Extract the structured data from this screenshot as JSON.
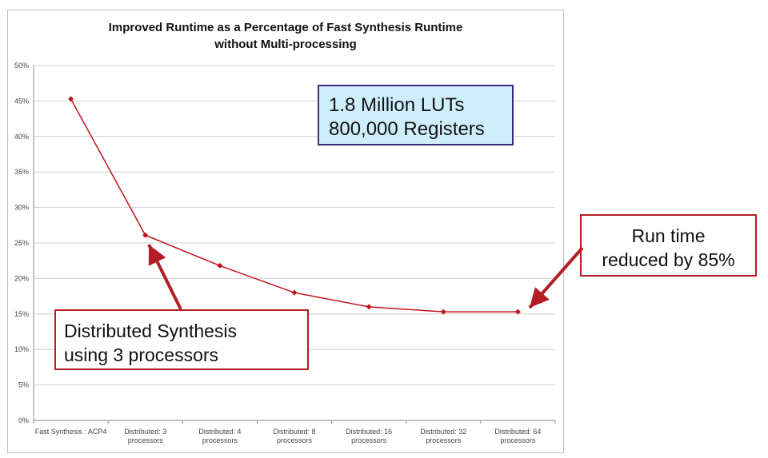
{
  "chart_data": {
    "type": "line",
    "title": [
      "Improved Runtime as a Percentage of Fast Synthesis Runtime",
      "without Multi-processing"
    ],
    "categories": [
      [
        "Fast Synthesis : ACP4"
      ],
      [
        "Distributed: 3",
        "processors"
      ],
      [
        "Distributed: 4",
        "processors"
      ],
      [
        "Distributed: 8",
        "processors"
      ],
      [
        "Distributed: 16",
        "processors"
      ],
      [
        "Distributed: 32",
        "processors"
      ],
      [
        "Distributed: 64",
        "processors"
      ]
    ],
    "values": [
      45.3,
      26.1,
      21.8,
      18.0,
      16.0,
      15.3,
      15.3
    ],
    "ylim": [
      0,
      50
    ],
    "yticks": [
      "0%",
      "5%",
      "10%",
      "15%",
      "20%",
      "25%",
      "30%",
      "35%",
      "40%",
      "45%",
      "50%"
    ],
    "grid": true,
    "series_color": "#c0141c"
  },
  "annotations": {
    "luts": [
      "1.8 Million LUTs",
      "800,000 Registers"
    ],
    "runtime": [
      "Run time",
      "reduced by 85%"
    ],
    "distributed": [
      "Distributed Synthesis",
      "using 3 processors"
    ]
  },
  "colors": {
    "arrow": "#b21e24",
    "luts_fill": "#cfeefc",
    "luts_border": "#3a2b7a"
  }
}
